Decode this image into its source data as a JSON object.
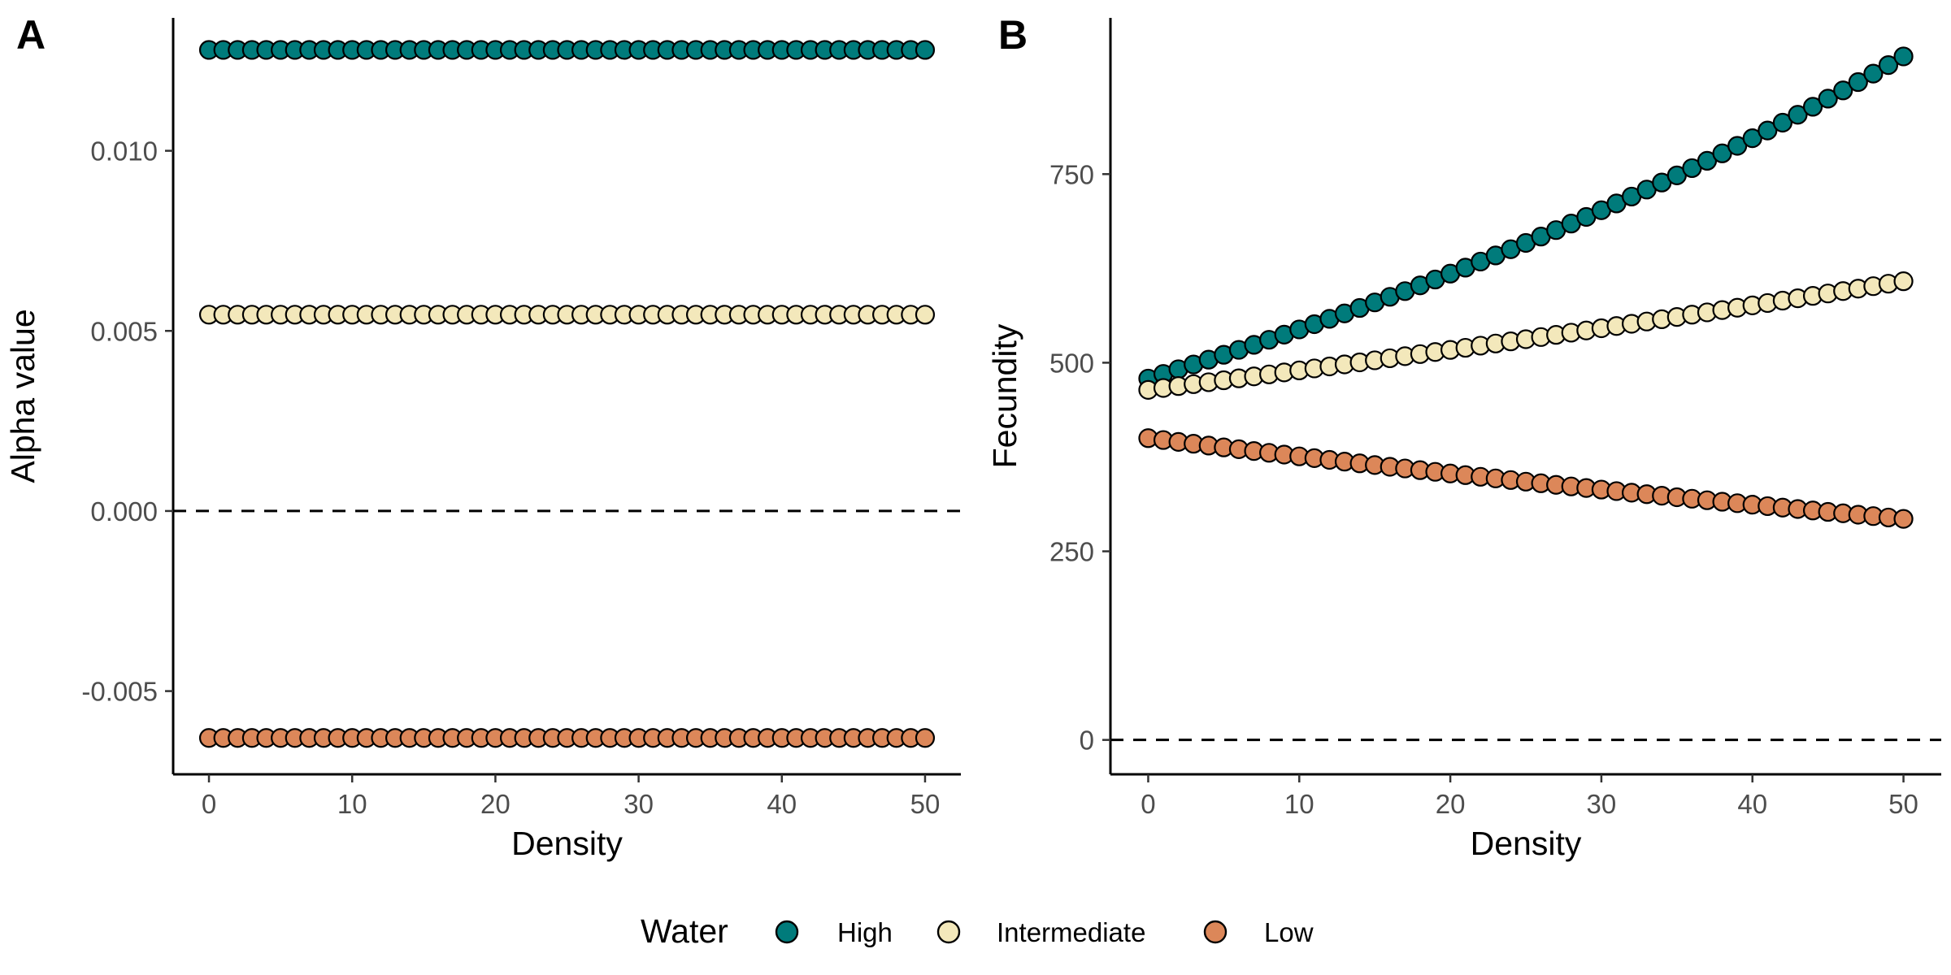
{
  "legend": {
    "title": "Water",
    "entries": [
      {
        "label": "High",
        "color": "#007b7b"
      },
      {
        "label": "Intermediate",
        "color": "#f3e8bb"
      },
      {
        "label": "Low",
        "color": "#dc8759"
      }
    ]
  },
  "chart_data": [
    {
      "type": "scatter",
      "panel": "A",
      "xlabel": "Density",
      "ylabel": "Alpha value",
      "xlim": [
        -2.5,
        52.5
      ],
      "ylim": [
        -0.00731,
        0.01369
      ],
      "xticks": [
        0,
        10,
        20,
        30,
        40,
        50
      ],
      "xtick_labels": [
        "0",
        "10",
        "20",
        "30",
        "40",
        "50"
      ],
      "yticks": [
        -0.005,
        0,
        0.005,
        0.01
      ],
      "ytick_labels": [
        "-0.005",
        "0.000",
        "0.005",
        "0.010"
      ],
      "reference_line": {
        "y": 0,
        "style": "dashed"
      },
      "grid": false,
      "x_range": {
        "start": 0,
        "end": 50,
        "step": 1
      },
      "series": [
        {
          "name": "High",
          "color": "#007b7b",
          "y_constant": 0.0128
        },
        {
          "name": "Intermediate",
          "color": "#f3e8bb",
          "y_constant": 0.00545
        },
        {
          "name": "Low",
          "color": "#dc8759",
          "y_constant": -0.0063
        }
      ]
    },
    {
      "type": "scatter",
      "panel": "B",
      "xlabel": "Density",
      "ylabel": "Fecundity",
      "xlim": [
        -2.5,
        52.5
      ],
      "ylim": [
        -45.6,
        957.1
      ],
      "xticks": [
        0,
        10,
        20,
        30,
        40,
        50
      ],
      "xtick_labels": [
        "0",
        "10",
        "20",
        "30",
        "40",
        "50"
      ],
      "yticks": [
        0,
        250,
        500,
        750
      ],
      "ytick_labels": [
        "0",
        "250",
        "500",
        "750"
      ],
      "reference_line": {
        "y": 0,
        "style": "dashed"
      },
      "grid": false,
      "x_range": {
        "start": 0,
        "end": 50,
        "step": 1
      },
      "series": [
        {
          "name": "High",
          "color": "#007b7b",
          "model": "exponential",
          "y_start": 479,
          "y_end": 906
        },
        {
          "name": "Intermediate",
          "color": "#f3e8bb",
          "model": "exponential",
          "y_start": 464,
          "y_end": 608
        },
        {
          "name": "Low",
          "color": "#dc8759",
          "model": "exponential",
          "y_start": 400,
          "y_end": 293
        }
      ]
    }
  ]
}
